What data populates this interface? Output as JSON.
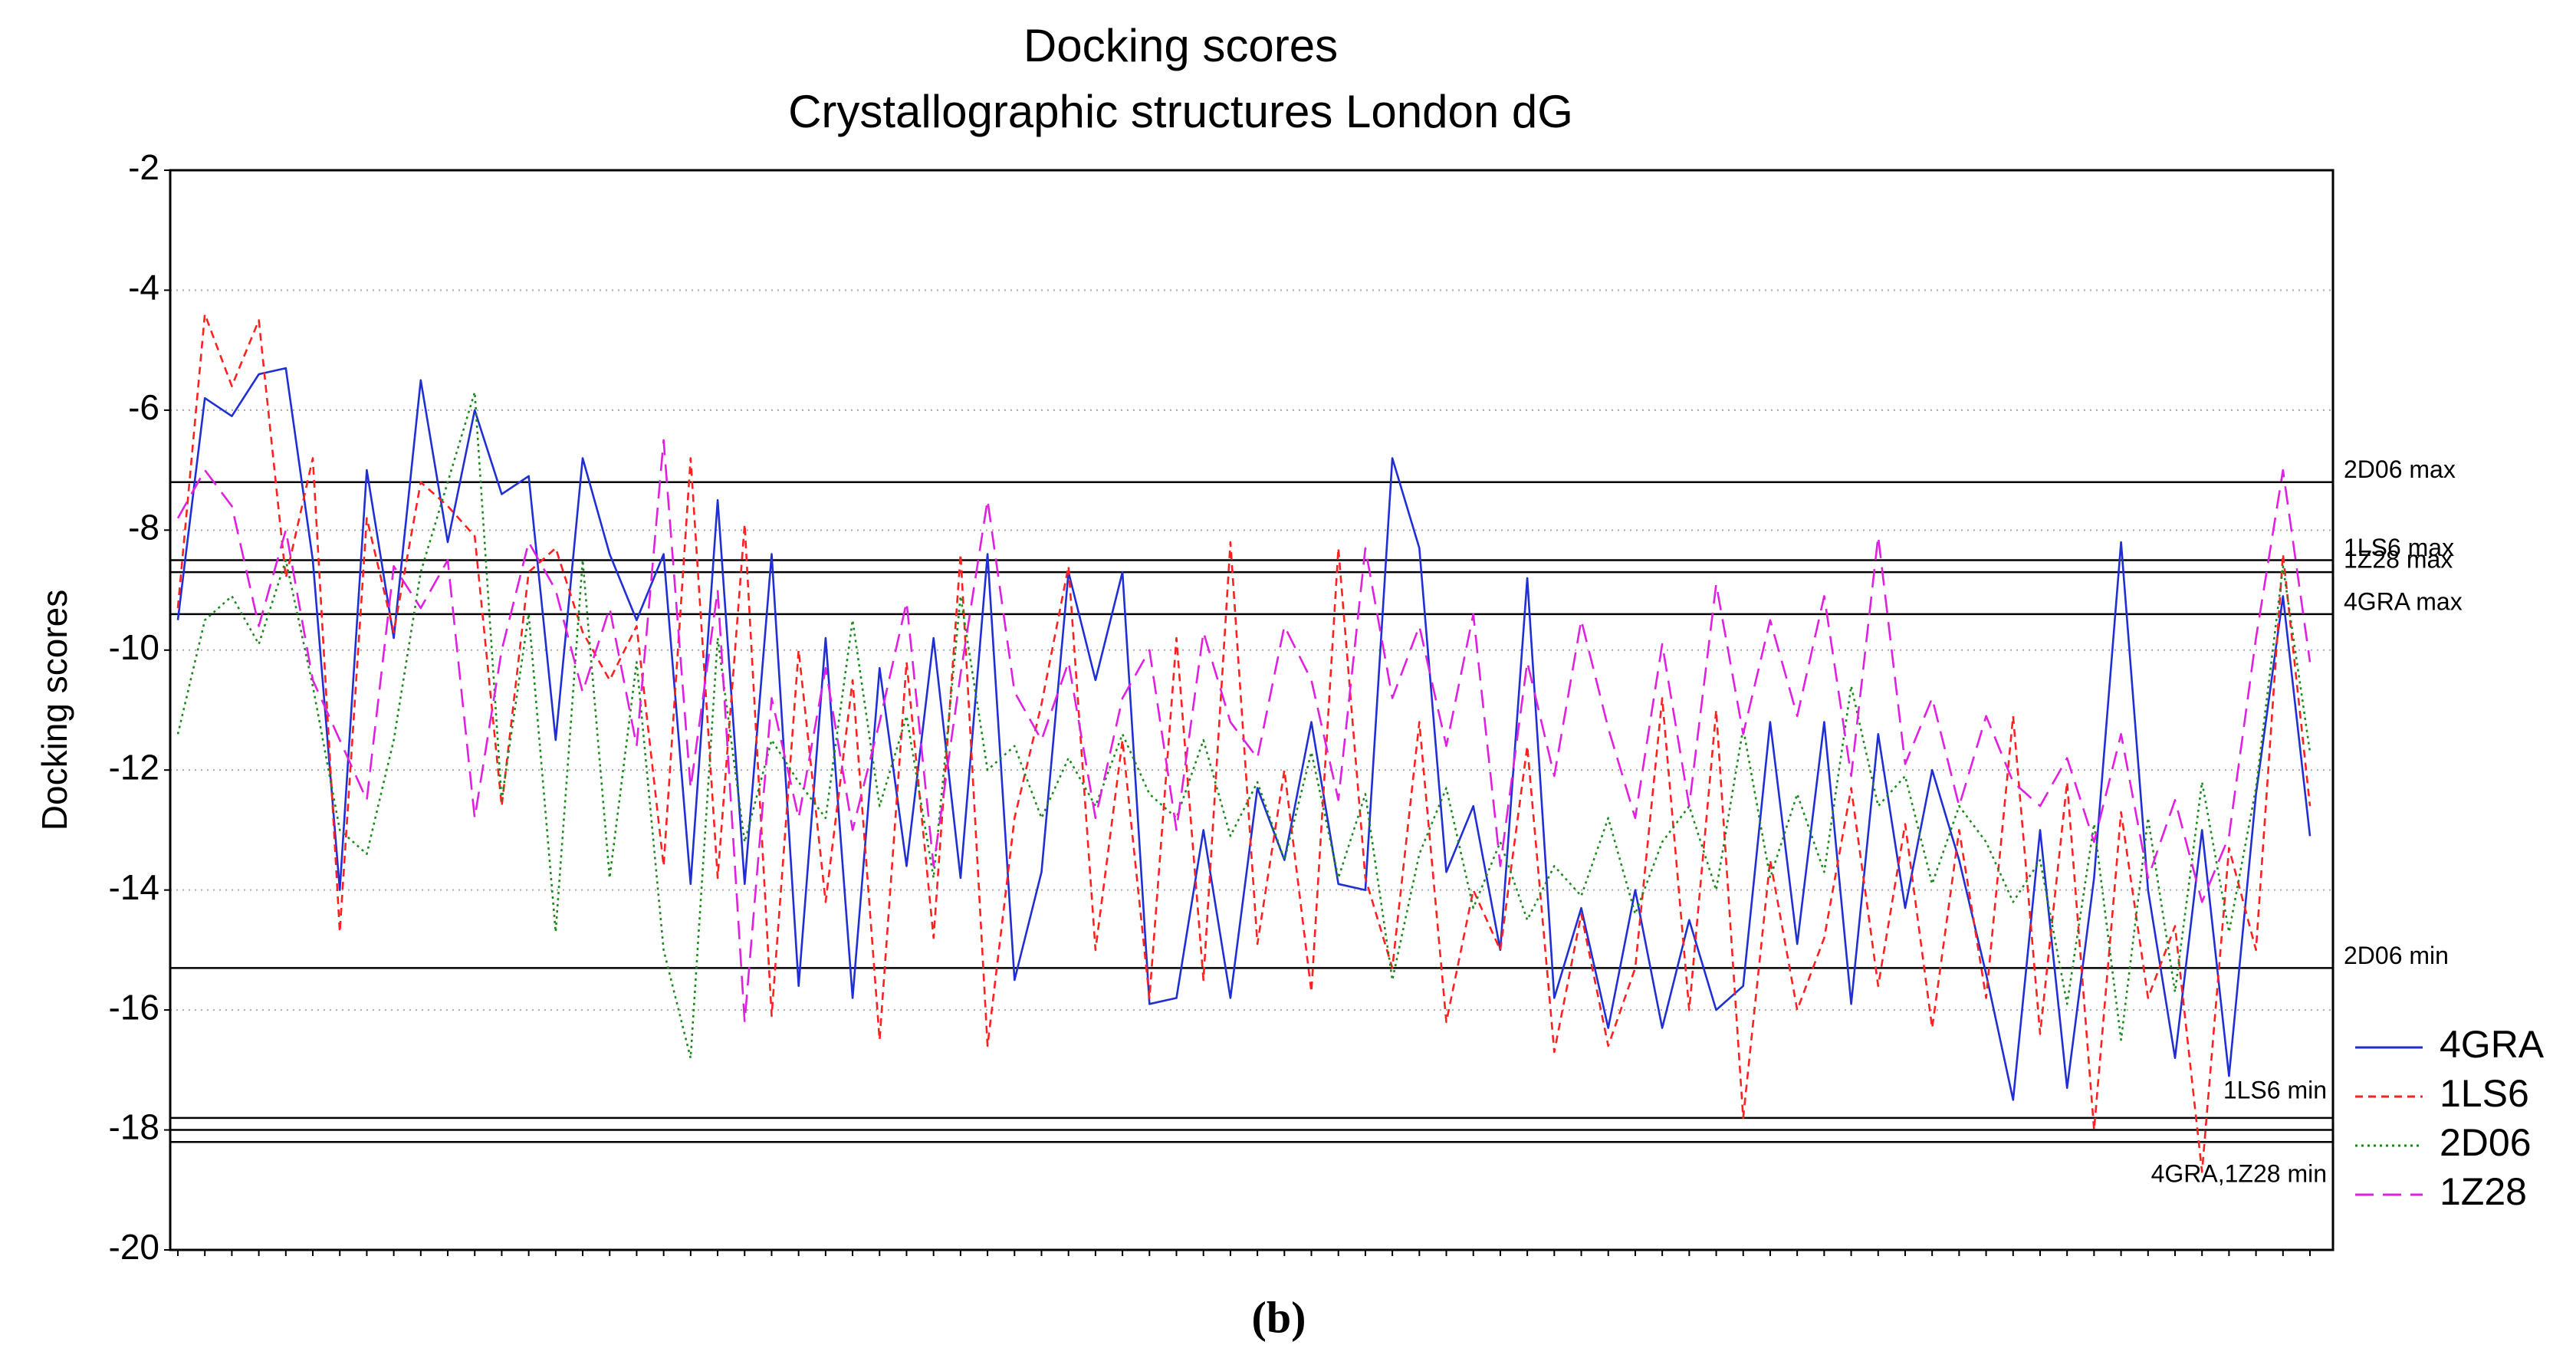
{
  "chart_data": {
    "type": "line",
    "title": "Docking scores",
    "subtitle": "Crystallographic structures London dG",
    "ylabel": "Docking scores",
    "caption": "(b)",
    "ylim": [
      -20,
      -2
    ],
    "yticks": [
      -20,
      -18,
      -16,
      -14,
      -12,
      -10,
      -8,
      -6,
      -4,
      -2
    ],
    "grid": true,
    "legend": "right",
    "series": [
      {
        "name": "4GRA",
        "color": "#1f2fd4",
        "line_style": "solid",
        "values": [
          -9.5,
          -5.8,
          -6.1,
          -5.4,
          -5.3,
          -8.5,
          -14,
          -7,
          -9.8,
          -5.5,
          -8.2,
          -6,
          -7.4,
          -7.1,
          -11.5,
          -6.8,
          -8.4,
          -9.5,
          -8.4,
          -13.9,
          -7.5,
          -13.9,
          -8.4,
          -15.6,
          -9.8,
          -15.8,
          -10.3,
          -13.6,
          -9.8,
          -13.8,
          -8.4,
          -15.5,
          -13.7,
          -8.7,
          -10.5,
          -8.7,
          -15.9,
          -15.8,
          -13,
          -15.8,
          -12.3,
          -13.5,
          -11.2,
          -13.9,
          -14,
          -6.8,
          -8.3,
          -13.7,
          -12.6,
          -15,
          -8.8,
          -15.8,
          -14.3,
          -16.3,
          -14,
          -16.3,
          -14.5,
          -16,
          -15.6,
          -11.2,
          -14.9,
          -11.2,
          -15.9,
          -11.4,
          -14.3,
          -12,
          -13.5,
          -15.4,
          -17.5,
          -13,
          -17.3,
          -13.8,
          -8.2,
          -14,
          -16.8,
          -13,
          -17.1,
          -12.4,
          -9.1,
          -13.1
        ]
      },
      {
        "name": "1LS6",
        "color": "#ff2020",
        "line_style": "dashed",
        "values": [
          -9.3,
          -4.4,
          -5.6,
          -4.5,
          -8.8,
          -6.8,
          -14.7,
          -7.8,
          -9.7,
          -7.2,
          -7.6,
          -8.1,
          -12.6,
          -8.7,
          -8.3,
          -9.7,
          -10.5,
          -9.6,
          -13.6,
          -6.8,
          -13.8,
          -7.9,
          -16.1,
          -10,
          -14.2,
          -10.5,
          -16.5,
          -10.2,
          -14.8,
          -8.4,
          -16.6,
          -12.8,
          -10.9,
          -8.6,
          -15,
          -11.5,
          -15.8,
          -9.8,
          -15.5,
          -8.2,
          -14.9,
          -12,
          -15.7,
          -8.3,
          -13.8,
          -15.3,
          -11.2,
          -16.2,
          -14,
          -15,
          -11.6,
          -16.7,
          -14.4,
          -16.6,
          -15.3,
          -10.8,
          -16,
          -11,
          -17.8,
          -13.5,
          -16,
          -14.8,
          -12.3,
          -15.6,
          -12.9,
          -16.3,
          -13,
          -15.8,
          -11.1,
          -16.4,
          -12.2,
          -18,
          -12.7,
          -15.8,
          -14.6,
          -18.7,
          -13.3,
          -15,
          -8.4,
          -12.6
        ]
      },
      {
        "name": "2D06",
        "color": "#1a8a1a",
        "line_style": "dotted",
        "values": [
          -11.4,
          -9.5,
          -9.1,
          -9.9,
          -8.5,
          -10.6,
          -13,
          -13.4,
          -11.5,
          -8.7,
          -7.2,
          -5.7,
          -12.5,
          -9.4,
          -14.7,
          -8.5,
          -13.8,
          -10.2,
          -15,
          -16.8,
          -9.8,
          -13.2,
          -11.5,
          -12.2,
          -12.8,
          -9.5,
          -12.6,
          -11.1,
          -13.8,
          -9.1,
          -12,
          -11.6,
          -12.8,
          -11.8,
          -12.6,
          -11.4,
          -12.4,
          -12.8,
          -11.5,
          -13.1,
          -12.2,
          -13.5,
          -11.7,
          -13.8,
          -12.4,
          -15.5,
          -13.4,
          -12.3,
          -14.3,
          -13.2,
          -14.5,
          -13.6,
          -14.1,
          -12.8,
          -14.4,
          -13.2,
          -12.6,
          -14,
          -11.3,
          -13.8,
          -12.4,
          -13.7,
          -10.6,
          -12.6,
          -12.1,
          -13.9,
          -12.6,
          -13.2,
          -14.2,
          -13.5,
          -15.9,
          -12.9,
          -16.5,
          -12.8,
          -15.7,
          -12.2,
          -14.7,
          -12.3,
          -8.6,
          -11.7
        ]
      },
      {
        "name": "1Z28",
        "color": "#e020e0",
        "line_style": "long-dashed",
        "values": [
          -7.8,
          -7,
          -7.6,
          -9.6,
          -8,
          -10.5,
          -11.5,
          -12.5,
          -8.6,
          -9.3,
          -8.5,
          -12.8,
          -10,
          -8.2,
          -9,
          -10.7,
          -9.3,
          -11.6,
          -6.5,
          -12.3,
          -9,
          -16.2,
          -10.8,
          -12.8,
          -10.3,
          -13,
          -11.2,
          -9.2,
          -13.6,
          -10.4,
          -7.5,
          -10.7,
          -11.5,
          -10.2,
          -12.8,
          -10.8,
          -10,
          -13,
          -9.7,
          -11.2,
          -11.8,
          -9.6,
          -10.5,
          -12.5,
          -8.3,
          -10.8,
          -9.6,
          -11.6,
          -9.4,
          -13.6,
          -10.2,
          -12.1,
          -9.5,
          -11.3,
          -12.8,
          -9.9,
          -12.6,
          -8.9,
          -11.4,
          -9.5,
          -11.1,
          -9.1,
          -12.1,
          -8.1,
          -11.9,
          -10.8,
          -12.6,
          -11.1,
          -12.2,
          -12.6,
          -11.8,
          -13.2,
          -11.4,
          -13.8,
          -12.5,
          -14.2,
          -13.1,
          -9.8,
          -7,
          -10.2
        ]
      }
    ],
    "ref_lines": [
      {
        "label": "2D06 max",
        "value": -7.2
      },
      {
        "label": "1LS6 max",
        "value": -8.5
      },
      {
        "label": "1Z28 max",
        "value": -8.7
      },
      {
        "label": "4GRA max",
        "value": -9.4
      },
      {
        "label": "2D06 min",
        "value": -15.3
      },
      {
        "label": "1LS6 min",
        "value": -17.8
      },
      {
        "label": null,
        "value": -18.0
      },
      {
        "label": "4GRA,1Z28 min",
        "value": -18.2
      }
    ]
  }
}
